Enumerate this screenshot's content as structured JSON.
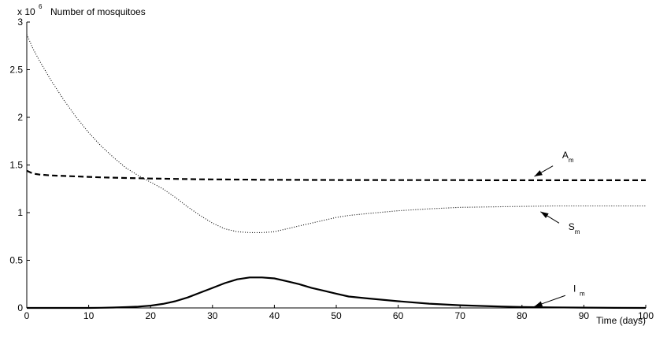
{
  "chart_data": {
    "type": "line",
    "ylabel": "Number of mosquitoes",
    "xlabel": "Time (days)",
    "y_multiplier": {
      "base": "x 10",
      "exponent": "6"
    },
    "xlim": [
      0,
      100
    ],
    "ylim": [
      0,
      3
    ],
    "xticks": [
      0,
      10,
      20,
      30,
      40,
      50,
      60,
      70,
      80,
      90,
      100
    ],
    "yticks": [
      0,
      0.5,
      1,
      1.5,
      2,
      2.5,
      3
    ],
    "ytick_labels": [
      "0",
      "0.5",
      "1",
      "1.5",
      "2",
      "2.5",
      "3"
    ],
    "grid": false,
    "x": [
      0,
      1,
      2,
      4,
      6,
      8,
      10,
      12,
      14,
      16,
      18,
      20,
      22,
      24,
      26,
      28,
      30,
      32,
      34,
      36,
      38,
      40,
      42,
      44,
      46,
      48,
      50,
      52,
      55,
      60,
      65,
      70,
      75,
      80,
      85,
      90,
      95,
      100
    ],
    "series": [
      {
        "name_main": "A",
        "name_sub": "m",
        "style": "dashed",
        "values": [
          1.44,
          1.41,
          1.4,
          1.39,
          1.385,
          1.38,
          1.375,
          1.37,
          1.367,
          1.364,
          1.361,
          1.358,
          1.356,
          1.354,
          1.352,
          1.35,
          1.349,
          1.348,
          1.347,
          1.346,
          1.345,
          1.345,
          1.344,
          1.344,
          1.343,
          1.343,
          1.342,
          1.342,
          1.342,
          1.341,
          1.341,
          1.341,
          1.34,
          1.34,
          1.34,
          1.34,
          1.34,
          1.34
        ],
        "annotation": {
          "label_x": 86.5,
          "label_y": 1.57,
          "arrow_from": [
            85,
            1.49
          ],
          "arrow_to": [
            82,
            1.38
          ]
        }
      },
      {
        "name_main": "S",
        "name_sub": "m",
        "style": "dotted",
        "values": [
          2.87,
          2.72,
          2.6,
          2.38,
          2.18,
          2.0,
          1.84,
          1.7,
          1.58,
          1.47,
          1.39,
          1.32,
          1.25,
          1.16,
          1.06,
          0.97,
          0.89,
          0.83,
          0.8,
          0.79,
          0.79,
          0.8,
          0.83,
          0.86,
          0.89,
          0.92,
          0.95,
          0.97,
          0.99,
          1.02,
          1.04,
          1.055,
          1.06,
          1.065,
          1.07,
          1.07,
          1.07,
          1.07
        ],
        "annotation": {
          "label_x": 87.5,
          "label_y": 0.82,
          "arrow_from": [
            86,
            0.89
          ],
          "arrow_to": [
            83,
            1.01
          ]
        }
      },
      {
        "name_main": "I",
        "name_sub": "m",
        "style": "solid",
        "values": [
          0,
          0,
          0,
          0,
          0,
          0,
          0,
          0.002,
          0.004,
          0.008,
          0.014,
          0.024,
          0.042,
          0.07,
          0.11,
          0.16,
          0.21,
          0.26,
          0.3,
          0.32,
          0.32,
          0.31,
          0.28,
          0.25,
          0.21,
          0.18,
          0.15,
          0.12,
          0.1,
          0.07,
          0.045,
          0.028,
          0.017,
          0.01,
          0.006,
          0.003,
          0.001,
          0
        ],
        "annotation": {
          "label_x": 88.3,
          "label_y": 0.17,
          "arrow_from": [
            87,
            0.13
          ],
          "arrow_to": [
            82,
            0.015
          ]
        }
      }
    ]
  }
}
